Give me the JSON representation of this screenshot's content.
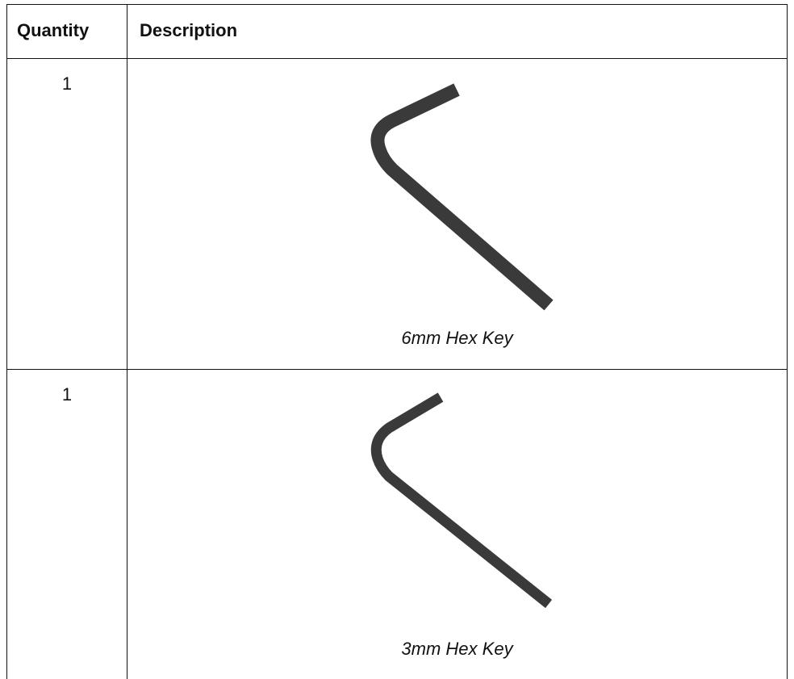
{
  "table": {
    "header": [
      "Quantity",
      "Description"
    ],
    "rows": [
      [
        "1",
        "6mm Hex Key"
      ],
      [
        "1",
        "3mm Hex Key"
      ]
    ]
  }
}
